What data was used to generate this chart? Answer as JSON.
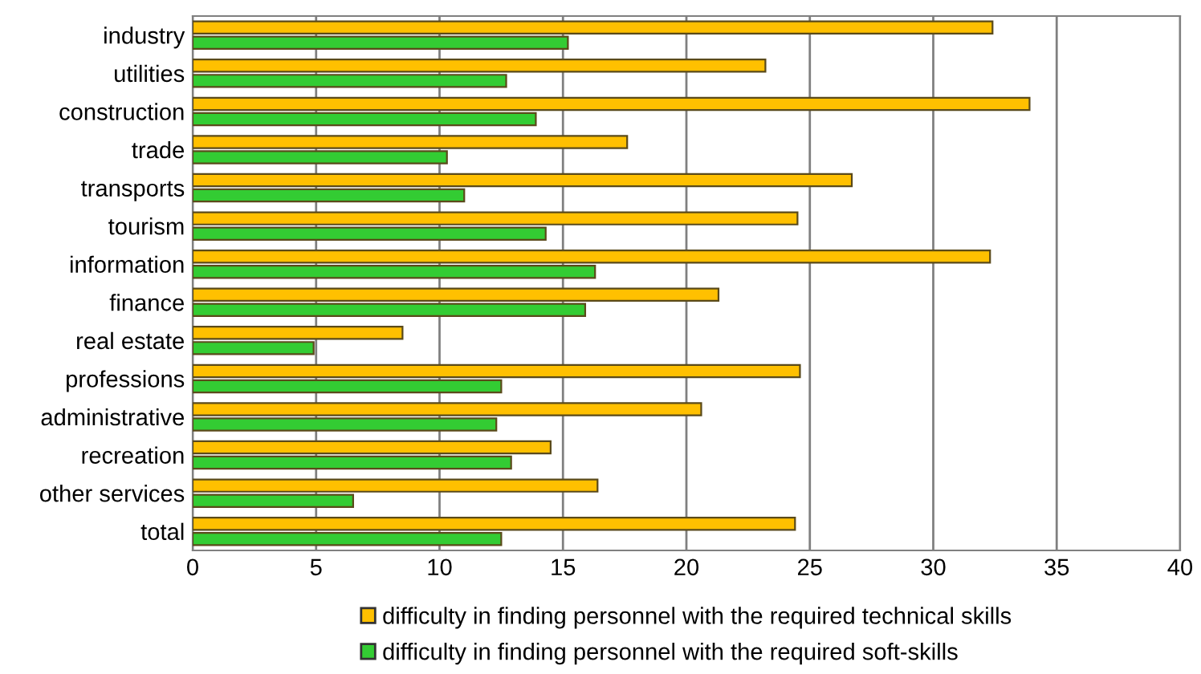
{
  "chart_data": {
    "type": "bar",
    "orientation": "horizontal",
    "categories": [
      "industry",
      "utilities",
      "construction",
      "trade",
      "transports",
      "tourism",
      "information",
      "finance",
      "real estate",
      "professions",
      "administrative",
      "recreation",
      "other services",
      "total"
    ],
    "series": [
      {
        "name": "difficulty in finding personnel with the required technical skills",
        "color": "#ffc000",
        "values": [
          32.4,
          23.2,
          33.9,
          17.6,
          26.7,
          24.5,
          32.3,
          21.3,
          8.5,
          24.6,
          20.6,
          14.5,
          16.4,
          24.4
        ]
      },
      {
        "name": "difficulty in finding personnel with the required soft-skills",
        "color": "#33cc33",
        "values": [
          15.2,
          12.7,
          13.9,
          10.3,
          11.0,
          14.3,
          16.3,
          15.9,
          4.9,
          12.5,
          12.3,
          12.9,
          6.5,
          12.5
        ]
      }
    ],
    "xlim": [
      0,
      40
    ],
    "xticks": [
      0,
      5,
      10,
      15,
      20,
      25,
      30,
      35,
      40
    ],
    "grid": "x",
    "legend": "bottom"
  }
}
